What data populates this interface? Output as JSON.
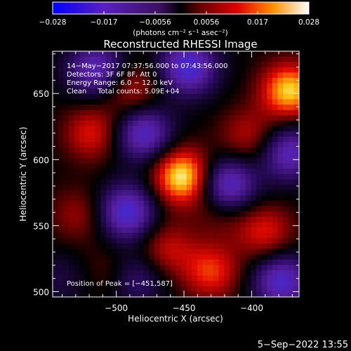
{
  "colorbar": {
    "ticks": [
      "−0.028",
      "−0.017",
      "−0.0056",
      "0.0056",
      "0.017",
      "0.028"
    ],
    "unit_label": "(photons cm⁻² s⁻¹ asec⁻²)"
  },
  "chart_data": {
    "type": "heatmap",
    "title": "Reconstructed RHESSI Image",
    "xlabel": "Heliocentric X (arcsec)",
    "ylabel": "Heliocentric Y (arcsec)",
    "xlim": [
      -547,
      -365
    ],
    "ylim": [
      496,
      682
    ],
    "x_ticks": [
      "−500",
      "−450",
      "−400"
    ],
    "y_ticks": [
      "500",
      "550",
      "600",
      "650"
    ],
    "x_tick_values": [
      -500,
      -450,
      -400
    ],
    "y_tick_values": [
      500,
      550,
      600,
      650
    ],
    "colorbar_range": [
      -0.028,
      0.028
    ],
    "annotations": [
      "14−May−2017 07:37:56.000 to 07:43:56.000",
      "Detectors: 3F 6F 8F, Att 0",
      "Energy Range: 6.0 − 12.0 keV",
      "Clean     Total counts: 5.09E+04",
      "Position of Peak = [−451,587]"
    ],
    "peak": {
      "x": -451,
      "y": 587,
      "value": 0.028
    },
    "blobs": [
      {
        "x": -451,
        "y": 587,
        "value": 0.028
      },
      {
        "x": -372,
        "y": 652,
        "value": 0.025
      },
      {
        "x": -518,
        "y": 620,
        "value": 0.014
      },
      {
        "x": -488,
        "y": 652,
        "value": 0.012
      },
      {
        "x": -403,
        "y": 618,
        "value": 0.011
      },
      {
        "x": -390,
        "y": 545,
        "value": 0.014
      },
      {
        "x": -463,
        "y": 532,
        "value": 0.012
      },
      {
        "x": -430,
        "y": 515,
        "value": 0.016
      },
      {
        "x": -528,
        "y": 558,
        "value": 0.009
      },
      {
        "x": -505,
        "y": 515,
        "value": 0.006
      },
      {
        "x": -423,
        "y": 560,
        "value": 0.007
      },
      {
        "x": -515,
        "y": 668,
        "value": -0.02
      },
      {
        "x": -447,
        "y": 670,
        "value": -0.024
      },
      {
        "x": -480,
        "y": 620,
        "value": -0.022
      },
      {
        "x": -492,
        "y": 560,
        "value": -0.024
      },
      {
        "x": -418,
        "y": 580,
        "value": -0.024
      },
      {
        "x": -372,
        "y": 605,
        "value": -0.02
      },
      {
        "x": -378,
        "y": 508,
        "value": -0.022
      },
      {
        "x": -485,
        "y": 510,
        "value": -0.012
      },
      {
        "x": -540,
        "y": 510,
        "value": -0.006
      }
    ]
  },
  "footer": {
    "date": "5−Sep−2022 13:55"
  }
}
